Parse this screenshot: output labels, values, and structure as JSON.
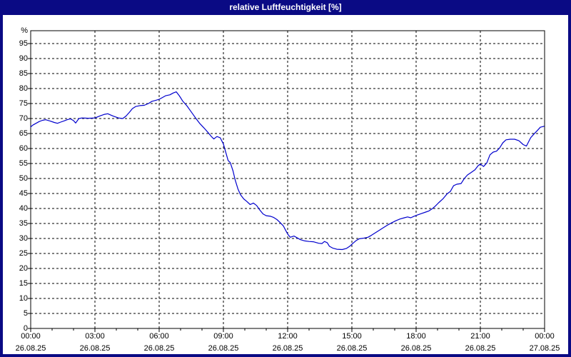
{
  "window": {
    "title": "relative Luftfeuchtigkeit [%]"
  },
  "colors": {
    "titlebar_bg": "#0a0a84",
    "title_text": "#ffffff",
    "plot_bg": "#ffffff",
    "grid": "#000000",
    "axis": "#000000",
    "label": "#000000",
    "line": "#0000cd"
  },
  "chart_data": {
    "type": "line",
    "title": "relative Luftfeuchtigkeit [%]",
    "ylabel_unit": "%",
    "ylim": [
      0,
      99
    ],
    "ytick_step": 5,
    "yticks": [
      0,
      5,
      10,
      15,
      20,
      25,
      30,
      35,
      40,
      45,
      50,
      55,
      60,
      65,
      70,
      75,
      80,
      85,
      90,
      95
    ],
    "grid": "dashed, horizontal every 5 %, vertical every 3 h",
    "legend": "none",
    "xticks": [
      {
        "hour": 0,
        "time": "00:00",
        "date": "26.08.25"
      },
      {
        "hour": 3,
        "time": "03:00",
        "date": "26.08.25"
      },
      {
        "hour": 6,
        "time": "06:00",
        "date": "26.08.25"
      },
      {
        "hour": 9,
        "time": "09:00",
        "date": "26.08.25"
      },
      {
        "hour": 12,
        "time": "12:00",
        "date": "26.08.25"
      },
      {
        "hour": 15,
        "time": "15:00",
        "date": "26.08.25"
      },
      {
        "hour": 18,
        "time": "18:00",
        "date": "26.08.25"
      },
      {
        "hour": 21,
        "time": "21:00",
        "date": "26.08.25"
      },
      {
        "hour": 24,
        "time": "00:00",
        "date": "27.08.25"
      }
    ],
    "series": [
      {
        "name": "relative Luftfeuchtigkeit",
        "unit": "%",
        "color": "#0000cd",
        "points_format": "[hour_of_day, percent]",
        "points": [
          [
            0,
            67.2
          ],
          [
            0.1,
            67.8
          ],
          [
            0.25,
            68.4
          ],
          [
            0.4,
            69
          ],
          [
            0.55,
            69.4
          ],
          [
            0.7,
            69.6
          ],
          [
            0.9,
            69.2
          ],
          [
            1.1,
            68.7
          ],
          [
            1.25,
            68.4
          ],
          [
            1.4,
            68.8
          ],
          [
            1.55,
            69.2
          ],
          [
            1.7,
            69.6
          ],
          [
            1.85,
            69.9
          ],
          [
            2,
            69.3
          ],
          [
            2.1,
            68.5
          ],
          [
            2.25,
            70
          ],
          [
            2.4,
            70.2
          ],
          [
            2.7,
            70.1
          ],
          [
            3,
            70.2
          ],
          [
            3.25,
            70.9
          ],
          [
            3.45,
            71.4
          ],
          [
            3.6,
            71.6
          ],
          [
            3.85,
            70.8
          ],
          [
            4.1,
            70.2
          ],
          [
            4.3,
            70
          ],
          [
            4.45,
            70.8
          ],
          [
            4.6,
            72
          ],
          [
            4.75,
            73.3
          ],
          [
            4.9,
            74
          ],
          [
            5.1,
            74.3
          ],
          [
            5.3,
            74.4
          ],
          [
            5.5,
            75
          ],
          [
            5.65,
            75.7
          ],
          [
            5.85,
            76.1
          ],
          [
            6,
            76.4
          ],
          [
            6.15,
            77
          ],
          [
            6.3,
            77.6
          ],
          [
            6.5,
            77.9
          ],
          [
            6.65,
            78.5
          ],
          [
            6.8,
            78.9
          ],
          [
            6.95,
            77.5
          ],
          [
            7.1,
            75.8
          ],
          [
            7.3,
            74.2
          ],
          [
            7.5,
            72.2
          ],
          [
            7.7,
            70.2
          ],
          [
            7.9,
            68.3
          ],
          [
            8.1,
            66.8
          ],
          [
            8.3,
            65.2
          ],
          [
            8.45,
            63.9
          ],
          [
            8.55,
            63.2
          ],
          [
            8.7,
            64
          ],
          [
            8.85,
            63.6
          ],
          [
            9,
            61.5
          ],
          [
            9.12,
            58.5
          ],
          [
            9.22,
            56
          ],
          [
            9.32,
            55.3
          ],
          [
            9.45,
            52.5
          ],
          [
            9.55,
            49.5
          ],
          [
            9.68,
            46.5
          ],
          [
            9.8,
            44.6
          ],
          [
            9.95,
            43.2
          ],
          [
            10.1,
            42.3
          ],
          [
            10.25,
            41.3
          ],
          [
            10.4,
            41.8
          ],
          [
            10.55,
            41
          ],
          [
            10.7,
            39.5
          ],
          [
            10.85,
            38.2
          ],
          [
            11,
            37.6
          ],
          [
            11.2,
            37.4
          ],
          [
            11.35,
            37
          ],
          [
            11.5,
            36.3
          ],
          [
            11.65,
            35.3
          ],
          [
            11.8,
            34.2
          ],
          [
            11.9,
            32.8
          ],
          [
            12,
            31.5
          ],
          [
            12.12,
            30.4
          ],
          [
            12.3,
            30.8
          ],
          [
            12.45,
            30.2
          ],
          [
            12.6,
            29.6
          ],
          [
            12.8,
            29.2
          ],
          [
            13,
            29
          ],
          [
            13.2,
            28.9
          ],
          [
            13.45,
            28.4
          ],
          [
            13.6,
            28.3
          ],
          [
            13.72,
            29
          ],
          [
            13.85,
            28.6
          ],
          [
            13.95,
            27.4
          ],
          [
            14.1,
            26.8
          ],
          [
            14.3,
            26.4
          ],
          [
            14.55,
            26.3
          ],
          [
            14.75,
            26.7
          ],
          [
            14.9,
            27.4
          ],
          [
            15.05,
            28.4
          ],
          [
            15.2,
            29.3
          ],
          [
            15.35,
            29.9
          ],
          [
            15.55,
            30.1
          ],
          [
            15.75,
            30.4
          ],
          [
            15.9,
            31
          ],
          [
            16.05,
            31.7
          ],
          [
            16.25,
            32.6
          ],
          [
            16.45,
            33.5
          ],
          [
            16.65,
            34.4
          ],
          [
            16.85,
            35.2
          ],
          [
            17.05,
            35.9
          ],
          [
            17.25,
            36.5
          ],
          [
            17.45,
            36.9
          ],
          [
            17.6,
            37.2
          ],
          [
            17.75,
            36.9
          ],
          [
            17.9,
            37.4
          ],
          [
            18.05,
            37.8
          ],
          [
            18.25,
            38.3
          ],
          [
            18.45,
            38.8
          ],
          [
            18.6,
            39.2
          ],
          [
            18.75,
            39.9
          ],
          [
            18.9,
            40.8
          ],
          [
            19.05,
            41.9
          ],
          [
            19.25,
            43.2
          ],
          [
            19.45,
            44.9
          ],
          [
            19.6,
            45.7
          ],
          [
            19.75,
            47.6
          ],
          [
            19.9,
            48.1
          ],
          [
            20.1,
            48.3
          ],
          [
            20.25,
            50
          ],
          [
            20.4,
            51.2
          ],
          [
            20.55,
            51.9
          ],
          [
            20.75,
            52.9
          ],
          [
            20.9,
            54.3
          ],
          [
            21,
            54.8
          ],
          [
            21.15,
            54
          ],
          [
            21.3,
            55.2
          ],
          [
            21.45,
            57.9
          ],
          [
            21.6,
            58.8
          ],
          [
            21.75,
            59.1
          ],
          [
            21.9,
            60.2
          ],
          [
            22.05,
            61.9
          ],
          [
            22.2,
            62.9
          ],
          [
            22.4,
            63.1
          ],
          [
            22.6,
            63.1
          ],
          [
            22.8,
            62.6
          ],
          [
            23,
            61.3
          ],
          [
            23.15,
            60.8
          ],
          [
            23.35,
            63.6
          ],
          [
            23.5,
            64.8
          ],
          [
            23.65,
            65.9
          ],
          [
            23.8,
            67.1
          ],
          [
            23.97,
            67.4
          ]
        ]
      }
    ]
  }
}
